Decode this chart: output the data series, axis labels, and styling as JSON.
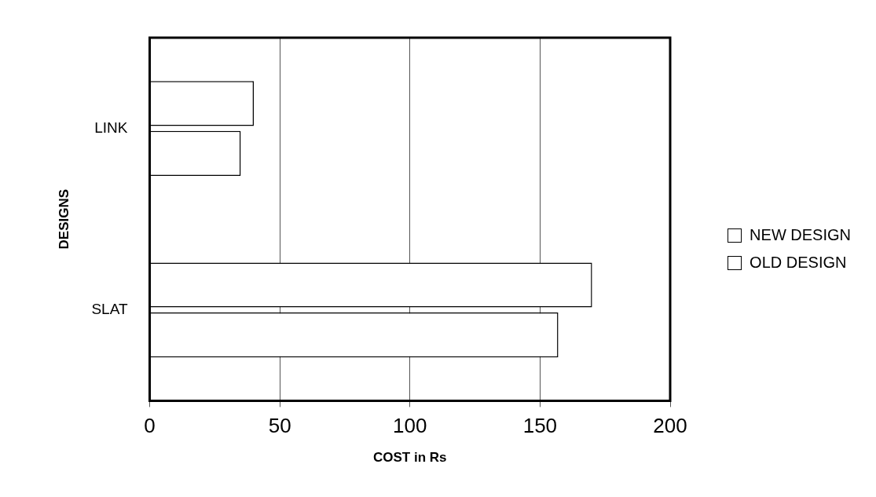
{
  "chart_data": {
    "type": "bar",
    "orientation": "horizontal",
    "xlabel": "COST in Rs",
    "ylabel": "DESIGNS",
    "categories": [
      "LINK",
      "SLAT"
    ],
    "series": [
      {
        "name": "NEW DESIGN",
        "color": "#ffffff",
        "values": [
          40,
          170
        ]
      },
      {
        "name": "OLD DESIGN",
        "color": "#ffffff",
        "values": [
          35,
          157
        ]
      }
    ],
    "xlim": [
      0,
      200
    ],
    "xticks": [
      0,
      50,
      100,
      150,
      200
    ],
    "grid": "x",
    "legend": "right"
  }
}
